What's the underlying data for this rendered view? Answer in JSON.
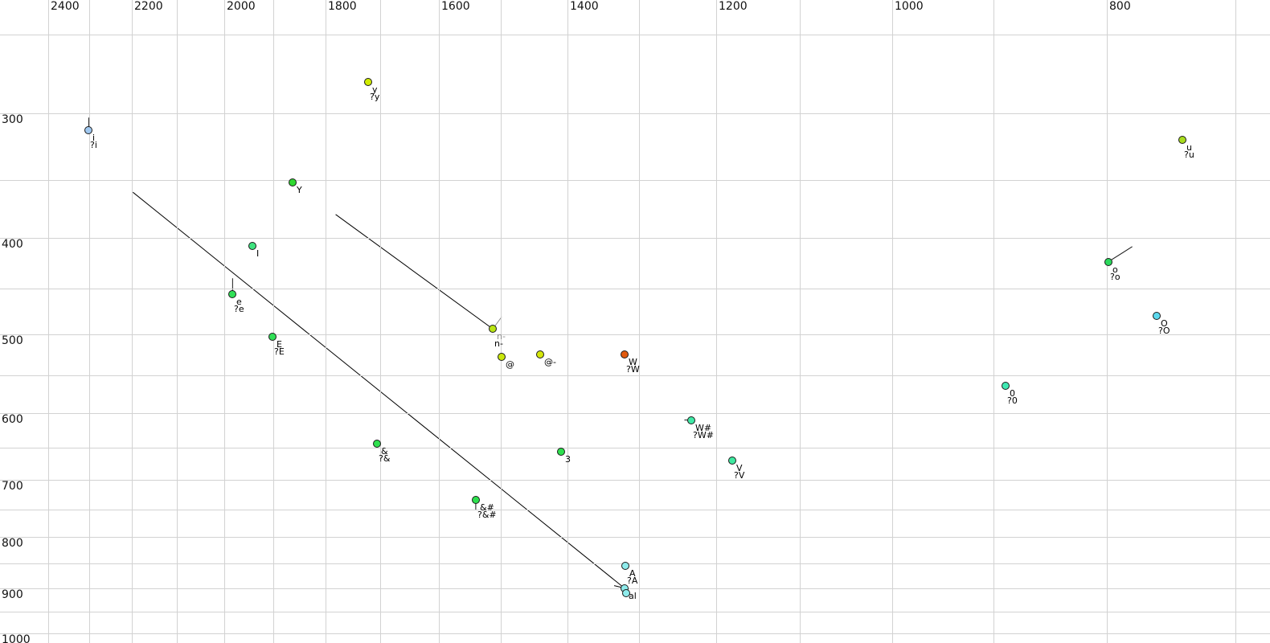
{
  "chart_data": {
    "type": "scatter",
    "title": "",
    "description": "Vowel formant chart (F2 top axis decreasing left-to-right, F1 left axis increasing downward, both logarithmic)",
    "x_axis": {
      "position": "top",
      "scale": "log",
      "unit": "Hz",
      "tick_labels": [
        2400,
        2200,
        2000,
        1800,
        1600,
        1400,
        1200,
        1000,
        800
      ],
      "gridline_step_hz": 100,
      "gridline_min": 700,
      "gridline_max": 2400,
      "visible_range": [
        2520,
        675
      ]
    },
    "y_axis": {
      "position": "left",
      "scale": "log",
      "unit": "Hz",
      "tick_labels": [
        300,
        400,
        500,
        600,
        700,
        800,
        900,
        1000
      ],
      "gridline_step_hz": 50,
      "gridline_min": 250,
      "gridline_max": 1000,
      "visible_range": [
        231,
        1022
      ]
    },
    "points": [
      {
        "label": "i",
        "label2": "?i",
        "f2": 2301,
        "f1": 312,
        "color": "#a0c8f0",
        "tail_dx": 0,
        "tail_dy": -16
      },
      {
        "label": "y",
        "label2": "?y",
        "f2": 1722,
        "f1": 279,
        "color": "#d0ec00"
      },
      {
        "label": "Y",
        "label2": "",
        "f2": 1862,
        "f1": 352,
        "color": "#2fd930"
      },
      {
        "label": "I",
        "label2": "",
        "f2": 1942,
        "f1": 408,
        "color": "#3fe37f"
      },
      {
        "label": "e",
        "label2": "?e",
        "f2": 1982,
        "f1": 456,
        "color": "#31e057",
        "tail_dx": 0,
        "tail_dy": -20
      },
      {
        "label": "E",
        "label2": "?E",
        "f2": 1901,
        "f1": 503,
        "color": "#31e057"
      },
      {
        "label": "n-",
        "label2": "n-",
        "f2": 1513,
        "f1": 494,
        "color": "#b9e512",
        "label_color": "#8a8a8a",
        "tail_dx": 11,
        "tail_dy": -15,
        "tail_color": "#8a8a8a"
      },
      {
        "label": "@",
        "label2": "",
        "f2": 1499,
        "f1": 527,
        "color": "#c9e70c"
      },
      {
        "label": "@-",
        "label2": "",
        "f2": 1440,
        "f1": 524,
        "color": "#d5e70a"
      },
      {
        "label": "W",
        "label2": "?W",
        "f2": 1320,
        "f1": 524,
        "color": "#e0590e"
      },
      {
        "label": "o",
        "label2": "?o",
        "f2": 799,
        "f1": 423,
        "color": "#2bd95c",
        "tail_dx": 30,
        "tail_dy": -19
      },
      {
        "label": "O",
        "label2": "?O",
        "f2": 760,
        "f1": 479,
        "color": "#5cd9ee"
      },
      {
        "label": "u",
        "label2": "?u",
        "f2": 740,
        "f1": 319,
        "color": "#a8dc1e"
      },
      {
        "label": "0",
        "label2": "?0",
        "f2": 889,
        "f1": 564,
        "color": "#3fe9b2"
      },
      {
        "label": "W#",
        "label2": "?W#",
        "f2": 1231,
        "f1": 610,
        "color": "#3fe9a6",
        "tail_dx": -9,
        "tail_dy": 0
      },
      {
        "label": "V",
        "label2": "?V",
        "f2": 1180,
        "f1": 670,
        "color": "#3fe9a0"
      },
      {
        "label": "&",
        "label2": "?&",
        "f2": 1706,
        "f1": 644,
        "color": "#2ee04e"
      },
      {
        "label": "3",
        "label2": "",
        "f2": 1409,
        "f1": 657,
        "color": "#2ee04e"
      },
      {
        "label": "&#",
        "label2": "?&#",
        "f2": 1540,
        "f1": 734,
        "color": "#2ee04e",
        "tail_dx": 0,
        "tail_dy": 13
      },
      {
        "label": "A",
        "label2": "?A",
        "f2": 1319,
        "f1": 855,
        "color": "#8fecec"
      },
      {
        "label": "al",
        "label2": "",
        "f2": 1320,
        "f1": 900,
        "color": "#8fecec"
      },
      {
        "label": "",
        "label2": "",
        "f2": 1318,
        "f1": 910,
        "color": "#8fecec"
      }
    ],
    "annotation_lines": [
      {
        "f2_start": 2198,
        "f1_start": 360,
        "f2_end": 1320,
        "f1_end": 900,
        "arrow": true
      },
      {
        "f2_start": 1781,
        "f1_start": 379,
        "f2_end": 1513,
        "f1_end": 494,
        "arrow": false
      }
    ]
  },
  "style": {
    "background": "#ffffff",
    "grid_color": "#d2d2d2",
    "marker_outline": "#1a1a1a",
    "tick_color": "#111111",
    "label_color": "#000000",
    "line_color": "#000000"
  }
}
